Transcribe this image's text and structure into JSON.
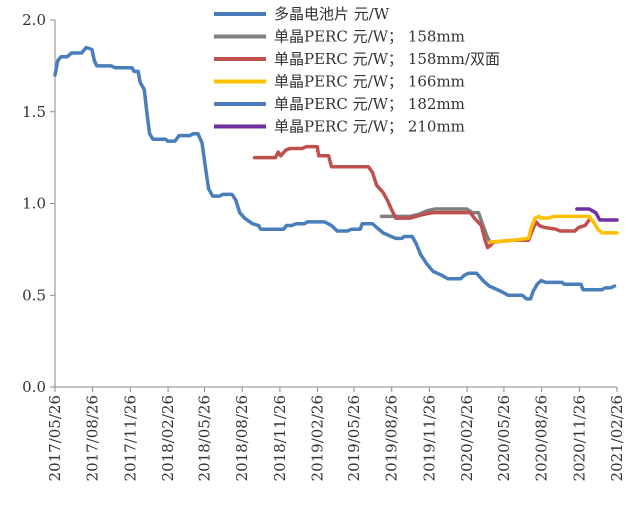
{
  "chart_data": {
    "type": "line",
    "title": "",
    "xlabel": "",
    "ylabel": "",
    "x_ticks": [
      "2017/05/26",
      "2017/08/26",
      "2017/11/26",
      "2018/02/26",
      "2018/05/26",
      "2018/08/26",
      "2018/11/26",
      "2019/02/26",
      "2019/05/26",
      "2019/08/26",
      "2019/11/26",
      "2020/02/26",
      "2020/05/26",
      "2020/08/26",
      "2020/11/26",
      "2021/02/26"
    ],
    "xlim": [
      "2017/05/26",
      "2021/02/26"
    ],
    "ylim": [
      0.0,
      2.0
    ],
    "y_ticks": [
      "0.0",
      "0.5",
      "1.0",
      "1.5",
      "2.0"
    ],
    "grid": false,
    "legend_position": "top",
    "series": [
      {
        "name": "多晶电池片 元/W",
        "color": "#4a7ebb",
        "points": [
          [
            "2017/05/26",
            1.7
          ],
          [
            "2017/06/02",
            1.78
          ],
          [
            "2017/06/10",
            1.8
          ],
          [
            "2017/06/25",
            1.8
          ],
          [
            "2017/07/05",
            1.82
          ],
          [
            "2017/07/30",
            1.82
          ],
          [
            "2017/08/10",
            1.85
          ],
          [
            "2017/08/24",
            1.84
          ],
          [
            "2017/08/30",
            1.78
          ],
          [
            "2017/09/05",
            1.75
          ],
          [
            "2017/10/10",
            1.75
          ],
          [
            "2017/10/20",
            1.74
          ],
          [
            "2017/11/30",
            1.74
          ],
          [
            "2017/12/05",
            1.72
          ],
          [
            "2017/12/15",
            1.72
          ],
          [
            "2017/12/20",
            1.66
          ],
          [
            "2017/12/30",
            1.62
          ],
          [
            "2018/01/05",
            1.5
          ],
          [
            "2018/01/12",
            1.38
          ],
          [
            "2018/01/20",
            1.35
          ],
          [
            "2018/02/20",
            1.35
          ],
          [
            "2018/02/25",
            1.34
          ],
          [
            "2018/03/15",
            1.34
          ],
          [
            "2018/03/25",
            1.37
          ],
          [
            "2018/04/20",
            1.37
          ],
          [
            "2018/04/28",
            1.38
          ],
          [
            "2018/05/10",
            1.38
          ],
          [
            "2018/05/20",
            1.33
          ],
          [
            "2018/05/28",
            1.2
          ],
          [
            "2018/06/05",
            1.08
          ],
          [
            "2018/06/15",
            1.04
          ],
          [
            "2018/07/01",
            1.04
          ],
          [
            "2018/07/10",
            1.05
          ],
          [
            "2018/08/01",
            1.05
          ],
          [
            "2018/08/10",
            1.02
          ],
          [
            "2018/08/20",
            0.95
          ],
          [
            "2018/09/01",
            0.92
          ],
          [
            "2018/09/20",
            0.89
          ],
          [
            "2018/10/05",
            0.88
          ],
          [
            "2018/10/10",
            0.86
          ],
          [
            "2018/12/05",
            0.86
          ],
          [
            "2018/12/12",
            0.88
          ],
          [
            "2018/12/25",
            0.88
          ],
          [
            "2019/01/05",
            0.89
          ],
          [
            "2019/01/25",
            0.89
          ],
          [
            "2019/02/01",
            0.9
          ],
          [
            "2019/03/15",
            0.9
          ],
          [
            "2019/04/01",
            0.88
          ],
          [
            "2019/04/15",
            0.85
          ],
          [
            "2019/05/10",
            0.85
          ],
          [
            "2019/05/20",
            0.86
          ],
          [
            "2019/06/10",
            0.86
          ],
          [
            "2019/06/15",
            0.89
          ],
          [
            "2019/07/10",
            0.89
          ],
          [
            "2019/07/20",
            0.87
          ],
          [
            "2019/08/05",
            0.84
          ],
          [
            "2019/08/25",
            0.82
          ],
          [
            "2019/09/05",
            0.81
          ],
          [
            "2019/09/20",
            0.81
          ],
          [
            "2019/09/25",
            0.82
          ],
          [
            "2019/10/15",
            0.82
          ],
          [
            "2019/10/25",
            0.78
          ],
          [
            "2019/11/05",
            0.72
          ],
          [
            "2019/11/20",
            0.67
          ],
          [
            "2019/12/05",
            0.63
          ],
          [
            "2019/12/25",
            0.61
          ],
          [
            "2020/01/10",
            0.59
          ],
          [
            "2020/02/10",
            0.59
          ],
          [
            "2020/02/20",
            0.61
          ],
          [
            "2020/03/01",
            0.62
          ],
          [
            "2020/03/20",
            0.62
          ],
          [
            "2020/04/05",
            0.58
          ],
          [
            "2020/04/20",
            0.55
          ],
          [
            "2020/05/10",
            0.53
          ],
          [
            "2020/05/20",
            0.52
          ],
          [
            "2020/06/05",
            0.5
          ],
          [
            "2020/07/10",
            0.5
          ],
          [
            "2020/07/20",
            0.48
          ],
          [
            "2020/07/30",
            0.48
          ],
          [
            "2020/08/05",
            0.52
          ],
          [
            "2020/08/15",
            0.56
          ],
          [
            "2020/08/25",
            0.58
          ],
          [
            "2020/09/05",
            0.57
          ],
          [
            "2020/10/15",
            0.57
          ],
          [
            "2020/10/20",
            0.56
          ],
          [
            "2020/11/30",
            0.56
          ],
          [
            "2020/12/05",
            0.53
          ],
          [
            "2021/01/20",
            0.53
          ],
          [
            "2021/01/28",
            0.54
          ],
          [
            "2021/02/10",
            0.54
          ],
          [
            "2021/02/20",
            0.55
          ]
        ]
      },
      {
        "name": "单晶PERC 元/W； 158mm",
        "color": "#7f7f7f",
        "points": [
          [
            "2019/08/01",
            0.93
          ],
          [
            "2019/10/10",
            0.93
          ],
          [
            "2019/10/30",
            0.94
          ],
          [
            "2019/11/20",
            0.96
          ],
          [
            "2019/12/10",
            0.97
          ],
          [
            "2020/02/25",
            0.97
          ],
          [
            "2020/03/10",
            0.95
          ],
          [
            "2020/03/25",
            0.95
          ],
          [
            "2020/04/05",
            0.88
          ],
          [
            "2020/04/15",
            0.82
          ],
          [
            "2020/04/22",
            0.79
          ]
        ]
      },
      {
        "name": "单晶PERC 元/W； 158mm/双面",
        "color": "#c0504d",
        "points": [
          [
            "2018/09/25",
            1.25
          ],
          [
            "2018/11/15",
            1.25
          ],
          [
            "2018/11/22",
            1.28
          ],
          [
            "2018/11/28",
            1.26
          ],
          [
            "2018/12/10",
            1.29
          ],
          [
            "2018/12/20",
            1.3
          ],
          [
            "2019/01/20",
            1.3
          ],
          [
            "2019/01/30",
            1.31
          ],
          [
            "2019/02/25",
            1.31
          ],
          [
            "2019/03/01",
            1.26
          ],
          [
            "2019/03/25",
            1.26
          ],
          [
            "2019/04/01",
            1.2
          ],
          [
            "2019/06/30",
            1.2
          ],
          [
            "2019/07/10",
            1.17
          ],
          [
            "2019/07/20",
            1.1
          ],
          [
            "2019/08/05",
            1.06
          ],
          [
            "2019/08/15",
            1.02
          ],
          [
            "2019/08/25",
            0.97
          ],
          [
            "2019/09/05",
            0.92
          ],
          [
            "2019/10/10",
            0.92
          ],
          [
            "2019/10/25",
            0.93
          ],
          [
            "2019/11/10",
            0.94
          ],
          [
            "2019/12/05",
            0.95
          ],
          [
            "2020/03/05",
            0.95
          ],
          [
            "2020/03/15",
            0.92
          ],
          [
            "2020/04/01",
            0.88
          ],
          [
            "2020/04/10",
            0.8
          ],
          [
            "2020/04/16",
            0.76
          ],
          [
            "2020/04/22",
            0.77
          ],
          [
            "2020/05/01",
            0.79
          ],
          [
            "2020/06/20",
            0.8
          ],
          [
            "2020/07/25",
            0.8
          ],
          [
            "2020/08/01",
            0.84
          ],
          [
            "2020/08/12",
            0.9
          ],
          [
            "2020/08/20",
            0.88
          ],
          [
            "2020/09/01",
            0.87
          ],
          [
            "2020/09/30",
            0.86
          ],
          [
            "2020/10/10",
            0.85
          ],
          [
            "2020/11/15",
            0.85
          ],
          [
            "2020/11/25",
            0.87
          ],
          [
            "2020/12/10",
            0.88
          ],
          [
            "2020/12/20",
            0.91
          ]
        ]
      },
      {
        "name": "单晶PERC 元/W； 166mm",
        "color": "#ffc000",
        "points": [
          [
            "2020/04/22",
            0.79
          ],
          [
            "2020/06/20",
            0.8
          ],
          [
            "2020/07/25",
            0.81
          ],
          [
            "2020/08/01",
            0.87
          ],
          [
            "2020/08/10",
            0.92
          ],
          [
            "2020/08/20",
            0.93
          ],
          [
            "2020/08/25",
            0.92
          ],
          [
            "2020/09/10",
            0.92
          ],
          [
            "2020/09/25",
            0.93
          ],
          [
            "2020/12/20",
            0.93
          ],
          [
            "2020/12/30",
            0.9
          ],
          [
            "2021/01/10",
            0.86
          ],
          [
            "2021/01/20",
            0.84
          ],
          [
            "2021/02/26",
            0.84
          ]
        ]
      },
      {
        "name": "单晶PERC 元/W； 182mm",
        "color": "#4a7ebb",
        "points": []
      },
      {
        "name": "单晶PERC 元/W； 210mm",
        "color": "#7030a0",
        "points": [
          [
            "2020/11/20",
            0.97
          ],
          [
            "2020/12/20",
            0.97
          ],
          [
            "2021/01/05",
            0.95
          ],
          [
            "2021/01/15",
            0.91
          ],
          [
            "2021/02/26",
            0.91
          ]
        ]
      }
    ]
  }
}
